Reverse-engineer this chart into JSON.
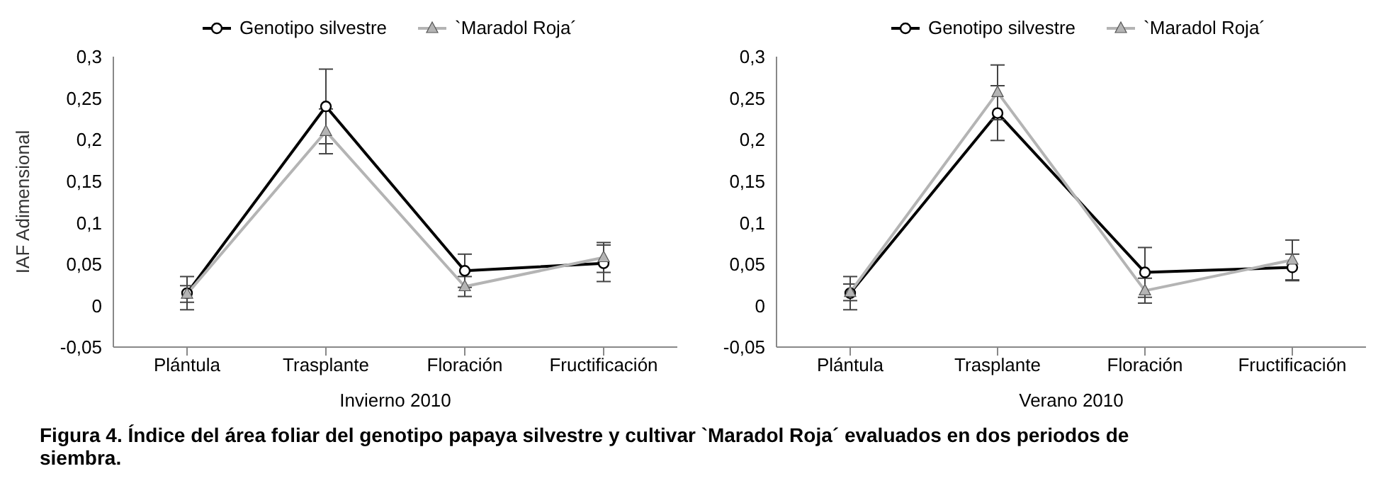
{
  "chart_data": [
    {
      "type": "line",
      "xlabel": "Invierno 2010",
      "ylabel": "IAF Adimensional",
      "categories": [
        "Plántula",
        "Trasplante",
        "Floración",
        "Fructificación"
      ],
      "ylim": [
        -0.05,
        0.3
      ],
      "yticks": [
        {
          "value": -0.05,
          "label": "-0,05"
        },
        {
          "value": 0,
          "label": "0"
        },
        {
          "value": 0.05,
          "label": "0,05"
        },
        {
          "value": 0.1,
          "label": "0,1"
        },
        {
          "value": 0.15,
          "label": "0,15"
        },
        {
          "value": 0.2,
          "label": "0,2"
        },
        {
          "value": 0.25,
          "label": "0,25"
        },
        {
          "value": 0.3,
          "label": "0,3"
        }
      ],
      "grid": false,
      "legend": "top",
      "series": [
        {
          "name": "Genotipo silvestre",
          "color": "#000000",
          "marker": "circle",
          "values": [
            0.015,
            0.24,
            0.042,
            0.051
          ],
          "errors": [
            0.02,
            0.045,
            0.02,
            0.022
          ]
        },
        {
          "name": "`Maradol Roja´",
          "color": "#b4b4b4",
          "marker": "triangle",
          "values": [
            0.014,
            0.21,
            0.023,
            0.058
          ],
          "errors": [
            0.01,
            0.027,
            0.012,
            0.018
          ]
        }
      ]
    },
    {
      "type": "line",
      "xlabel": "Verano 2010",
      "categories": [
        "Plántula",
        "Trasplante",
        "Floración",
        "Fructificación"
      ],
      "ylim": [
        -0.05,
        0.3
      ],
      "yticks": [
        {
          "value": -0.05,
          "label": "-0,05"
        },
        {
          "value": 0,
          "label": "0"
        },
        {
          "value": 0.05,
          "label": "0,05"
        },
        {
          "value": 0.1,
          "label": "0,1"
        },
        {
          "value": 0.15,
          "label": "0,15"
        },
        {
          "value": 0.2,
          "label": "0,2"
        },
        {
          "value": 0.25,
          "label": "0,25"
        },
        {
          "value": 0.3,
          "label": "0,3"
        }
      ],
      "grid": false,
      "legend": "top",
      "annotations": [
        "Figura 4. Índice del área foliar del genotipo papaya silvestre y cultivar `Maradol Roja´ evaluados en dos periodos de siembra."
      ],
      "series": [
        {
          "name": "Genotipo silvestre",
          "color": "#000000",
          "marker": "circle",
          "values": [
            0.015,
            0.232,
            0.04,
            0.046
          ],
          "errors": [
            0.02,
            0.033,
            0.03,
            0.016
          ]
        },
        {
          "name": "`Maradol Roja´",
          "color": "#b4b4b4",
          "marker": "triangle",
          "values": [
            0.016,
            0.257,
            0.018,
            0.055
          ],
          "errors": [
            0.01,
            0.033,
            0.015,
            0.024
          ]
        }
      ]
    }
  ]
}
